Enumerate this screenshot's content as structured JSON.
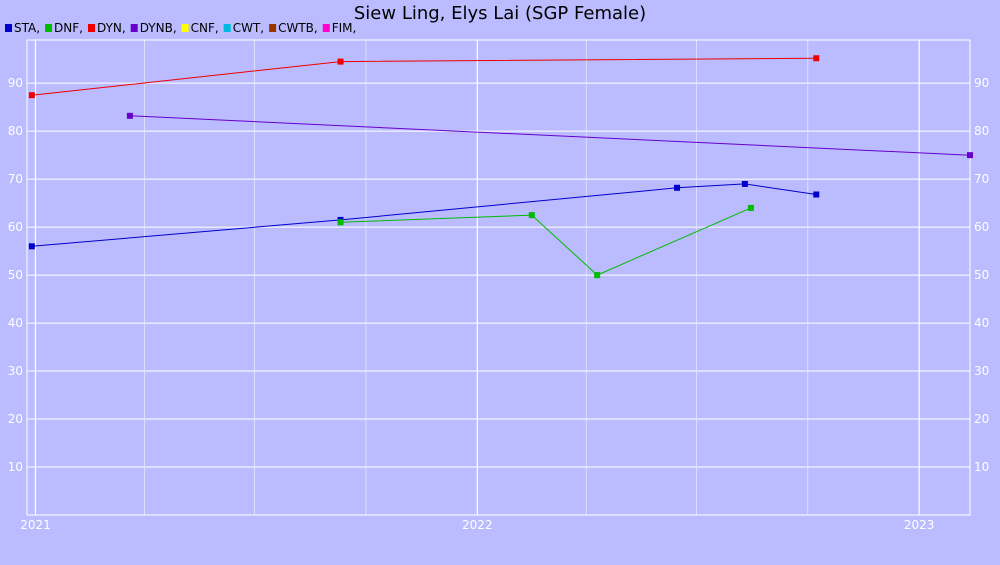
{
  "chart_data": {
    "type": "line",
    "title": "Siew Ling, Elys Lai (SGP Female)",
    "xlabel": "",
    "ylabel": "",
    "x_ticks": [
      "2021",
      "2022",
      "2023"
    ],
    "y_ticks": [
      10,
      20,
      30,
      40,
      50,
      60,
      70,
      80,
      90
    ],
    "xlim": [
      "2020-12-25",
      "2023-02-12"
    ],
    "ylim": [
      0,
      99
    ],
    "grid": true,
    "legend_position": "top-left",
    "legend": [
      {
        "label": "STA,",
        "color": "#0000cc"
      },
      {
        "label": "DNF,",
        "color": "#00bb00"
      },
      {
        "label": "DYN,",
        "color": "#ee0000"
      },
      {
        "label": "DYNB,",
        "color": "#6600cc"
      },
      {
        "label": "CNF,",
        "color": "#ffff00"
      },
      {
        "label": "CWT,",
        "color": "#00bbdd"
      },
      {
        "label": "CWTB,",
        "color": "#993300"
      },
      {
        "label": "FIM,",
        "color": "#ff00cc"
      }
    ],
    "series": [
      {
        "name": "STA,",
        "color": "#0000cc",
        "points": [
          [
            "2020-12-29",
            56
          ],
          [
            "2021-09-10",
            61.5
          ],
          [
            "2022-06-15",
            68.2
          ],
          [
            "2022-08-10",
            69
          ],
          [
            "2022-10-08",
            66.8
          ]
        ]
      },
      {
        "name": "DNF,",
        "color": "#00bb00",
        "points": [
          [
            "2021-09-10",
            61
          ],
          [
            "2022-02-15",
            62.5
          ],
          [
            "2022-04-10",
            50
          ],
          [
            "2022-08-15",
            64
          ]
        ]
      },
      {
        "name": "DYN,",
        "color": "#ee0000",
        "points": [
          [
            "2020-12-29",
            87.5
          ],
          [
            "2021-09-10",
            94.5
          ],
          [
            "2022-10-08",
            95.2
          ]
        ]
      },
      {
        "name": "DYNB,",
        "color": "#6600cc",
        "points": [
          [
            "2021-03-20",
            83.2
          ],
          [
            "2023-02-12",
            75
          ]
        ]
      }
    ]
  }
}
